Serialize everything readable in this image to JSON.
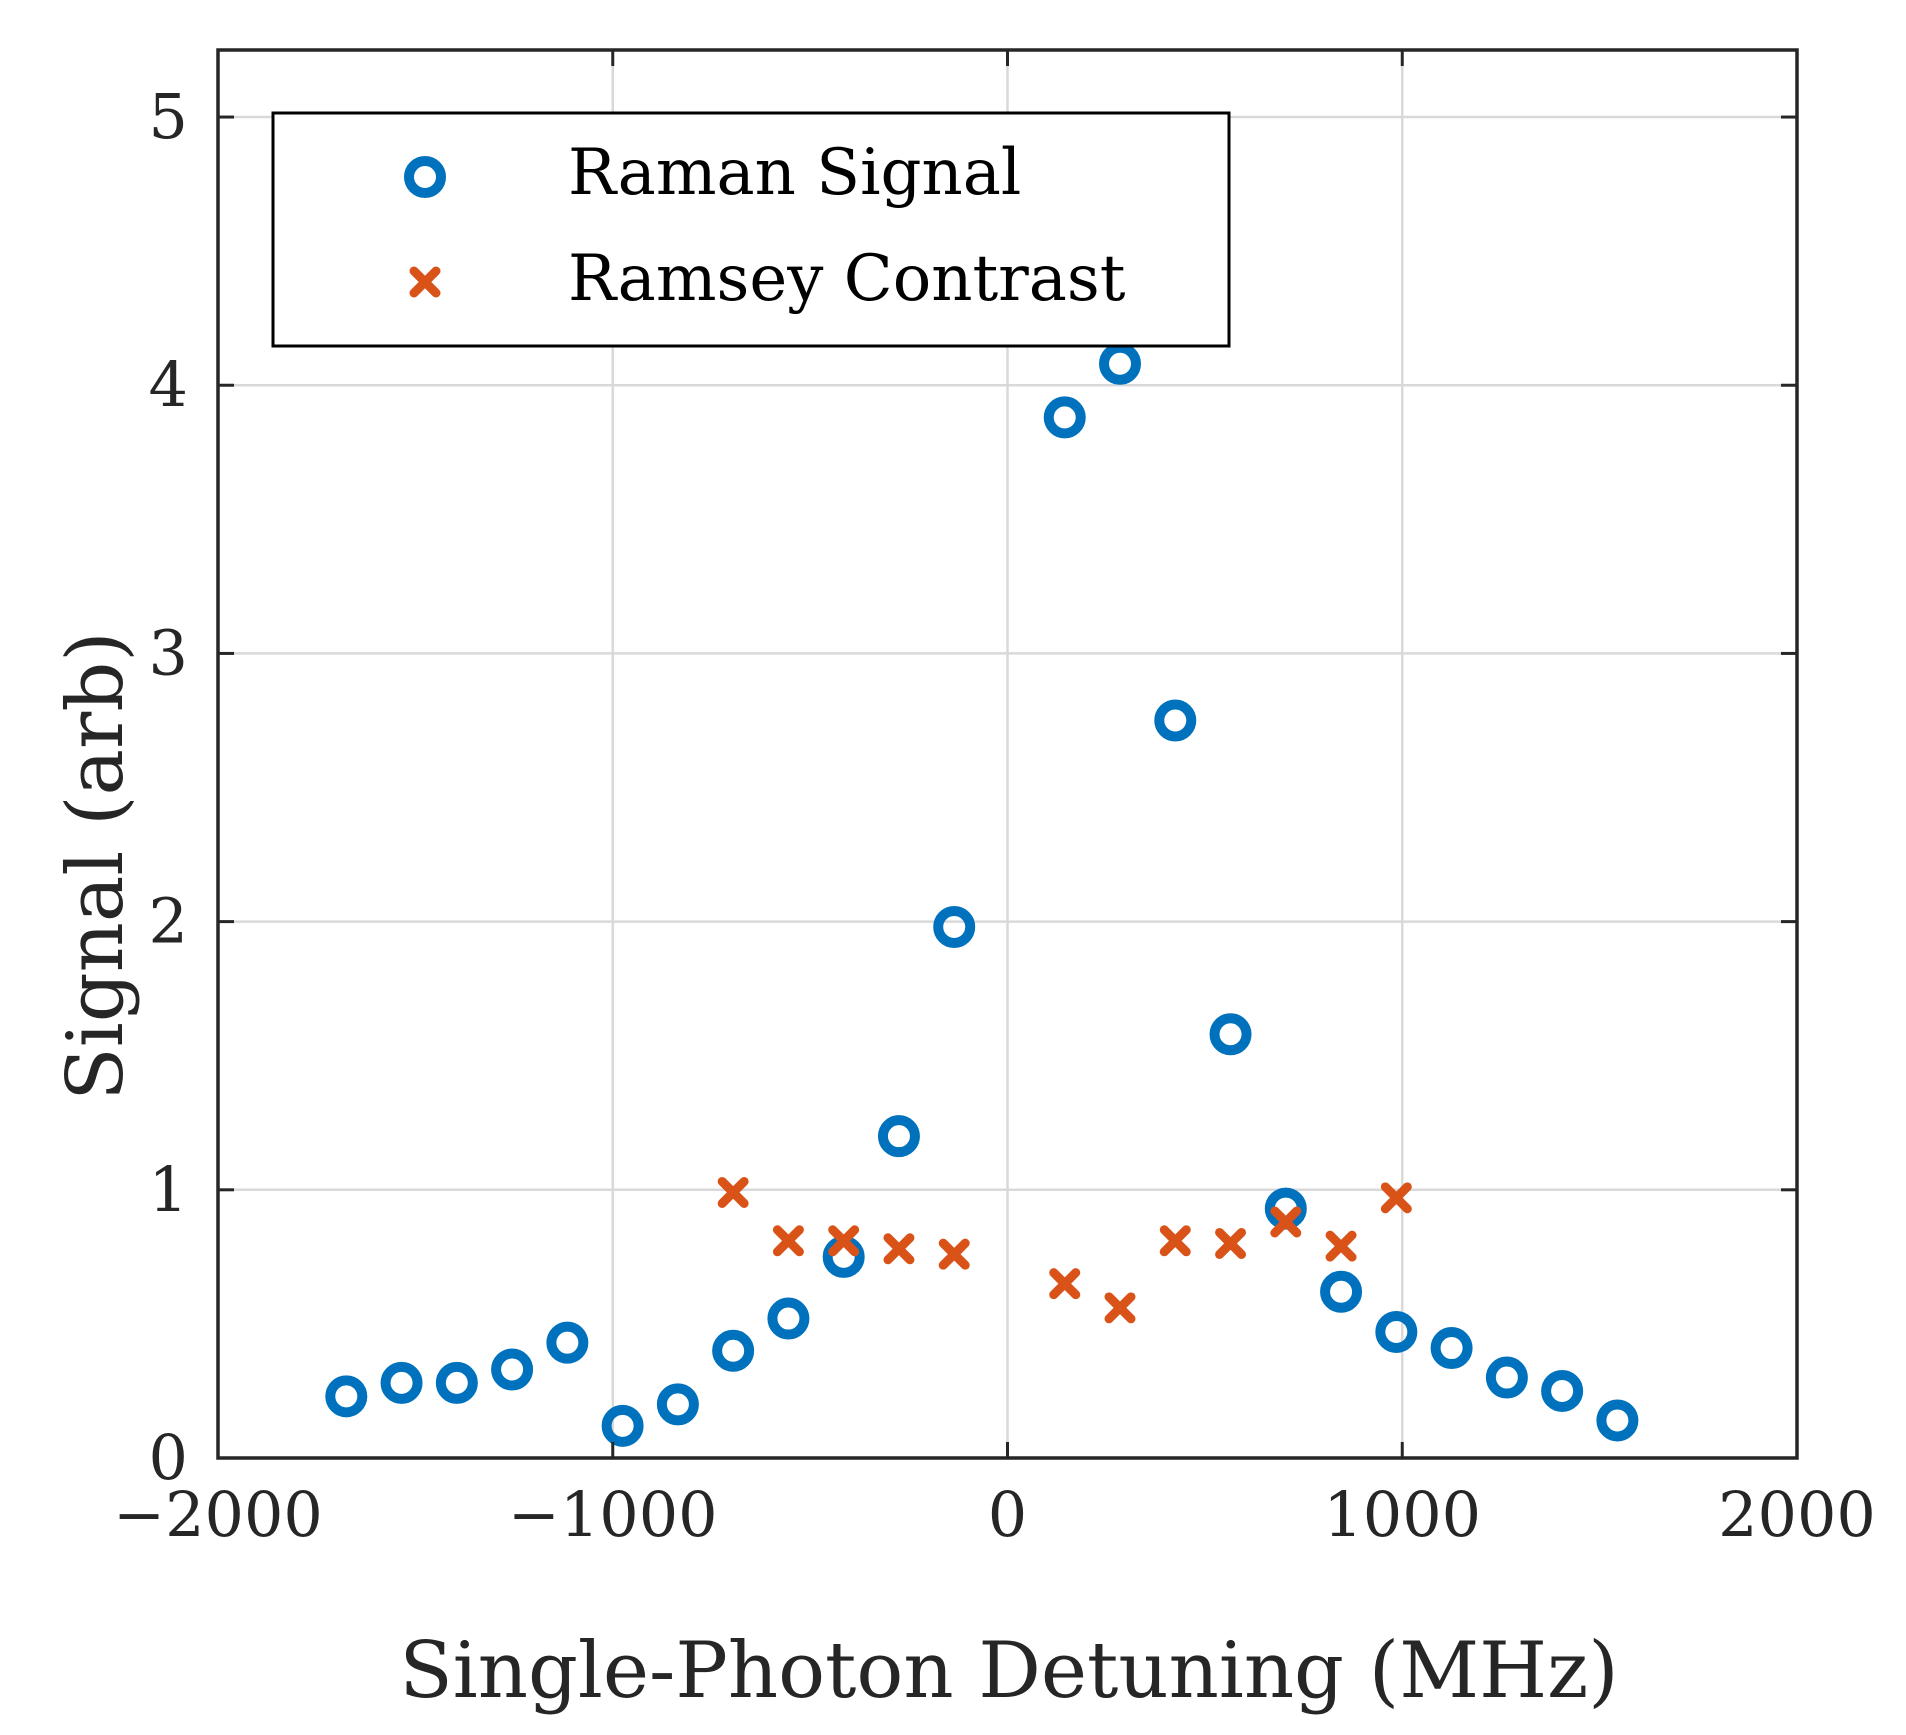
{
  "colors": {
    "raman": "#0072BD",
    "ramsey": "#D95319",
    "axis": "#262626",
    "grid": "#d9d9d9"
  },
  "chart_data": {
    "type": "scatter",
    "title": "",
    "xlabel": "Single-Photon Detuning (MHz)",
    "ylabel": "Signal (arb)",
    "xlim": [
      -2000,
      2000
    ],
    "ylim": [
      0,
      5.25
    ],
    "grid": true,
    "legend_position": "top-left",
    "x_ticks": [
      -2000,
      -1000,
      0,
      1000,
      2000
    ],
    "x_tick_labels": [
      "−2000",
      "−1000",
      "0",
      "1000",
      "2000"
    ],
    "y_ticks": [
      0,
      1,
      2,
      3,
      4,
      5
    ],
    "y_tick_labels": [
      "0",
      "1",
      "2",
      "3",
      "4",
      "5"
    ],
    "series": [
      {
        "name": "Raman Signal",
        "marker": "circle",
        "color": "#0072BD",
        "points": [
          [
            -1675,
            0.23
          ],
          [
            -1535,
            0.28
          ],
          [
            -1395,
            0.28
          ],
          [
            -1255,
            0.33
          ],
          [
            -1115,
            0.43
          ],
          [
            -975,
            0.12
          ],
          [
            -835,
            0.2
          ],
          [
            -695,
            0.4
          ],
          [
            -555,
            0.52
          ],
          [
            -415,
            0.75
          ],
          [
            -275,
            1.2
          ],
          [
            -135,
            1.98
          ],
          [
            145,
            3.88
          ],
          [
            285,
            4.08
          ],
          [
            425,
            2.75
          ],
          [
            565,
            1.58
          ],
          [
            705,
            0.93
          ],
          [
            845,
            0.62
          ],
          [
            985,
            0.47
          ],
          [
            1125,
            0.41
          ],
          [
            1265,
            0.3
          ],
          [
            1405,
            0.25
          ],
          [
            1545,
            0.14
          ]
        ]
      },
      {
        "name": "Ramsey Contrast",
        "marker": "x",
        "color": "#D95319",
        "points": [
          [
            -695,
            0.99
          ],
          [
            -555,
            0.81
          ],
          [
            -415,
            0.81
          ],
          [
            -275,
            0.78
          ],
          [
            -135,
            0.76
          ],
          [
            145,
            0.65
          ],
          [
            285,
            0.56
          ],
          [
            425,
            0.81
          ],
          [
            565,
            0.8
          ],
          [
            705,
            0.88
          ],
          [
            845,
            0.79
          ],
          [
            985,
            0.97
          ]
        ]
      }
    ]
  }
}
